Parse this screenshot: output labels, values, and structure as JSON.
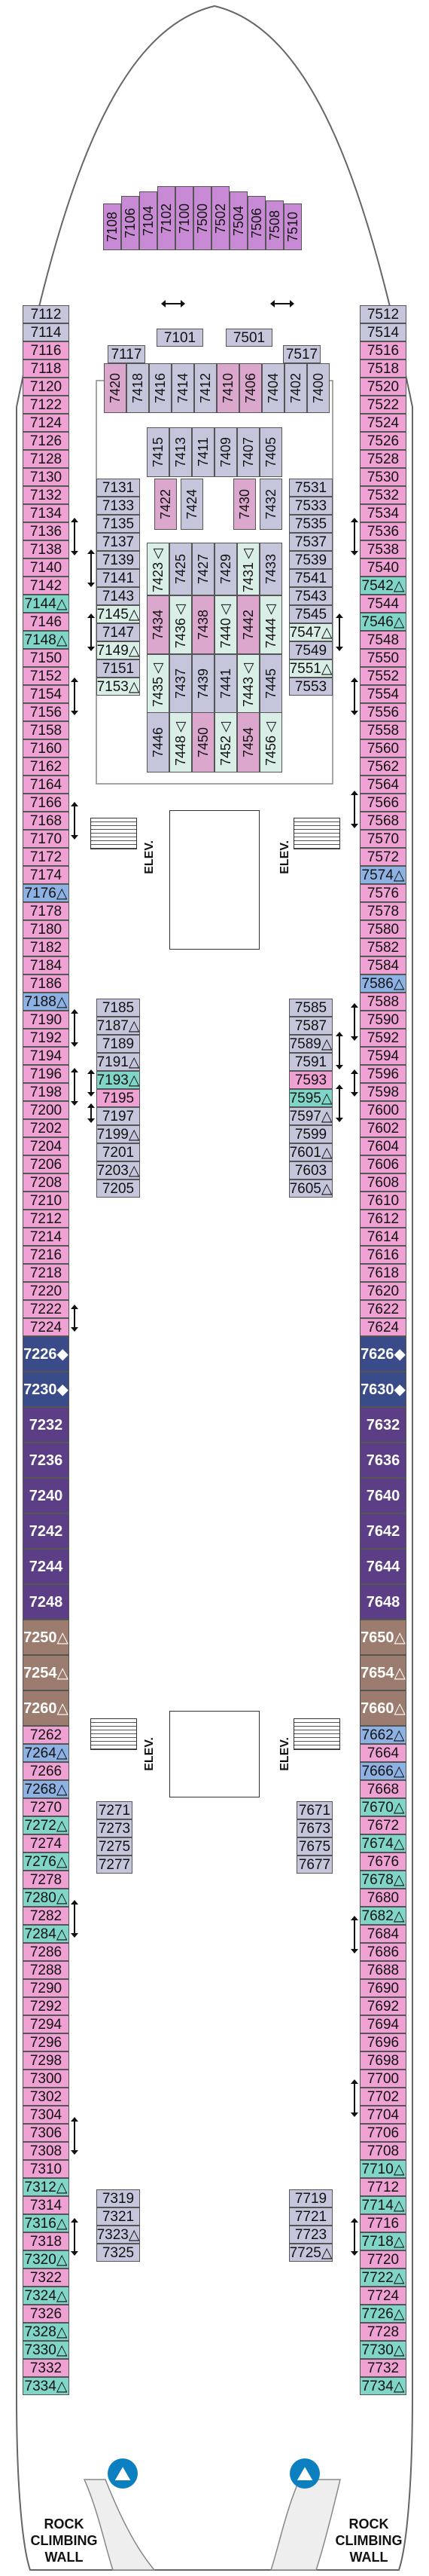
{
  "labels": {
    "elev": "ELEV.",
    "rock_climbing": "ROCK CLIMBING WALL"
  },
  "icons": [
    "rock-climbing-icon",
    "accessible-triangle-icon",
    "diamond-icon",
    "connecting-arrow-icon",
    "elevator-icon",
    "stairs-icon"
  ],
  "colors": {
    "interior": "#c5c6dc",
    "pink": "#dca7cc",
    "balcony": "#f0a1d3",
    "teal": "#7fd6c8",
    "blue": "#8eb1e4",
    "purple_suite": "#5b3e86",
    "navy": "#3a4b8a",
    "brown": "#9c7c6e",
    "plum": "#c88ad4"
  },
  "top_cabins": {
    "rotated": [
      {
        "t": "7108",
        "c": "plum"
      },
      {
        "t": "7106",
        "c": "plum"
      },
      {
        "t": "7104",
        "c": "plum"
      },
      {
        "t": "7102",
        "c": "plum"
      },
      {
        "t": "7100",
        "c": "plum"
      },
      {
        "t": "7500",
        "c": "plum"
      },
      {
        "t": "7502",
        "c": "plum"
      },
      {
        "t": "7504",
        "c": "plum"
      },
      {
        "t": "7506",
        "c": "plum"
      },
      {
        "t": "7508",
        "c": "plum"
      },
      {
        "t": "7510",
        "c": "plum"
      }
    ],
    "mid": [
      "7101",
      "7501",
      "7117",
      "7517"
    ],
    "vertical_row": [
      {
        "t": "7420",
        "c": "pink"
      },
      {
        "t": "7418",
        "c": "int"
      },
      {
        "t": "7416",
        "c": "int"
      },
      {
        "t": "7414",
        "c": "int"
      },
      {
        "t": "7412",
        "c": "int"
      },
      {
        "t": "7410",
        "c": "pink"
      },
      {
        "t": "7406",
        "c": "pink"
      },
      {
        "t": "7404",
        "c": "int"
      },
      {
        "t": "7402",
        "c": "int"
      },
      {
        "t": "7400",
        "c": "int"
      }
    ]
  },
  "left_outer": [
    {
      "t": "7112",
      "c": "int"
    },
    {
      "t": "7114",
      "c": "int"
    },
    {
      "t": "7116",
      "c": "bal"
    },
    {
      "t": "7118",
      "c": "bal"
    },
    {
      "t": "7120",
      "c": "bal"
    },
    {
      "t": "7122",
      "c": "bal"
    },
    {
      "t": "7124",
      "c": "bal"
    },
    {
      "t": "7126",
      "c": "bal"
    },
    {
      "t": "7128",
      "c": "bal"
    },
    {
      "t": "7130",
      "c": "bal"
    },
    {
      "t": "7132",
      "c": "bal"
    },
    {
      "t": "7134",
      "c": "bal"
    },
    {
      "t": "7136",
      "c": "bal"
    },
    {
      "t": "7138",
      "c": "bal"
    },
    {
      "t": "7140",
      "c": "bal"
    },
    {
      "t": "7142",
      "c": "bal"
    },
    {
      "t": "7144△",
      "c": "teal"
    },
    {
      "t": "7146",
      "c": "bal"
    },
    {
      "t": "7148△",
      "c": "teal"
    },
    {
      "t": "7150",
      "c": "bal"
    },
    {
      "t": "7152",
      "c": "bal"
    },
    {
      "t": "7154",
      "c": "bal"
    },
    {
      "t": "7156",
      "c": "bal"
    },
    {
      "t": "7158",
      "c": "bal"
    },
    {
      "t": "7160",
      "c": "bal"
    },
    {
      "t": "7162",
      "c": "bal"
    },
    {
      "t": "7164",
      "c": "bal"
    },
    {
      "t": "7166",
      "c": "bal"
    },
    {
      "t": "7168",
      "c": "bal"
    },
    {
      "t": "7170",
      "c": "bal"
    },
    {
      "t": "7172",
      "c": "bal"
    },
    {
      "t": "7174",
      "c": "bal"
    },
    {
      "t": "7176△",
      "c": "blue"
    },
    {
      "t": "7178",
      "c": "bal"
    },
    {
      "t": "7180",
      "c": "bal"
    },
    {
      "t": "7182",
      "c": "bal"
    },
    {
      "t": "7184",
      "c": "bal"
    },
    {
      "t": "7186",
      "c": "bal"
    },
    {
      "t": "7188△",
      "c": "blue"
    },
    {
      "t": "7190",
      "c": "bal"
    },
    {
      "t": "7192",
      "c": "bal"
    },
    {
      "t": "7194",
      "c": "bal"
    },
    {
      "t": "7196",
      "c": "bal"
    },
    {
      "t": "7198",
      "c": "bal"
    },
    {
      "t": "7200",
      "c": "bal"
    },
    {
      "t": "7202",
      "c": "bal"
    },
    {
      "t": "7204",
      "c": "bal"
    },
    {
      "t": "7206",
      "c": "bal"
    },
    {
      "t": "7208",
      "c": "bal"
    },
    {
      "t": "7210",
      "c": "bal"
    },
    {
      "t": "7212",
      "c": "bal"
    },
    {
      "t": "7214",
      "c": "bal"
    },
    {
      "t": "7216",
      "c": "bal"
    },
    {
      "t": "7218",
      "c": "bal"
    },
    {
      "t": "7220",
      "c": "bal"
    },
    {
      "t": "7222",
      "c": "bal"
    },
    {
      "t": "7224",
      "c": "bal"
    },
    {
      "t": "7226◆",
      "c": "nav"
    },
    {
      "t": "7230◆",
      "c": "nav"
    },
    {
      "t": "7232",
      "c": "purp"
    },
    {
      "t": "7236",
      "c": "purp"
    },
    {
      "t": "7240",
      "c": "purp"
    },
    {
      "t": "7242",
      "c": "purp"
    },
    {
      "t": "7244",
      "c": "purp"
    },
    {
      "t": "7248",
      "c": "purp"
    },
    {
      "t": "7250△",
      "c": "brown"
    },
    {
      "t": "7254△",
      "c": "brown"
    },
    {
      "t": "7260△",
      "c": "brown"
    },
    {
      "t": "7262",
      "c": "bal"
    },
    {
      "t": "7264△",
      "c": "blue"
    },
    {
      "t": "7266",
      "c": "bal"
    },
    {
      "t": "7268△",
      "c": "blue"
    },
    {
      "t": "7270",
      "c": "bal"
    },
    {
      "t": "7272△",
      "c": "teal"
    },
    {
      "t": "7274",
      "c": "bal"
    },
    {
      "t": "7276△",
      "c": "teal"
    },
    {
      "t": "7278",
      "c": "bal"
    },
    {
      "t": "7280△",
      "c": "teal"
    },
    {
      "t": "7282",
      "c": "bal"
    },
    {
      "t": "7284△",
      "c": "teal"
    },
    {
      "t": "7286",
      "c": "bal"
    },
    {
      "t": "7288",
      "c": "bal"
    },
    {
      "t": "7290",
      "c": "bal"
    },
    {
      "t": "7292",
      "c": "bal"
    },
    {
      "t": "7294",
      "c": "bal"
    },
    {
      "t": "7296",
      "c": "bal"
    },
    {
      "t": "7298",
      "c": "bal"
    },
    {
      "t": "7300",
      "c": "bal"
    },
    {
      "t": "7302",
      "c": "bal"
    },
    {
      "t": "7304",
      "c": "bal"
    },
    {
      "t": "7306",
      "c": "bal"
    },
    {
      "t": "7308",
      "c": "bal"
    },
    {
      "t": "7310",
      "c": "bal"
    },
    {
      "t": "7312△",
      "c": "teal"
    },
    {
      "t": "7314",
      "c": "bal"
    },
    {
      "t": "7316△",
      "c": "teal"
    },
    {
      "t": "7318",
      "c": "bal"
    },
    {
      "t": "7320△",
      "c": "teal"
    },
    {
      "t": "7322",
      "c": "bal"
    },
    {
      "t": "7324△",
      "c": "teal"
    },
    {
      "t": "7326",
      "c": "bal"
    },
    {
      "t": "7328△",
      "c": "teal"
    },
    {
      "t": "7330△",
      "c": "teal"
    },
    {
      "t": "7332",
      "c": "bal"
    },
    {
      "t": "7334△",
      "c": "teal"
    }
  ],
  "right_outer": [
    {
      "t": "7512",
      "c": "int"
    },
    {
      "t": "7514",
      "c": "int"
    },
    {
      "t": "7516",
      "c": "bal"
    },
    {
      "t": "7518",
      "c": "bal"
    },
    {
      "t": "7520",
      "c": "bal"
    },
    {
      "t": "7522",
      "c": "bal"
    },
    {
      "t": "7524",
      "c": "bal"
    },
    {
      "t": "7526",
      "c": "bal"
    },
    {
      "t": "7528",
      "c": "bal"
    },
    {
      "t": "7530",
      "c": "bal"
    },
    {
      "t": "7532",
      "c": "bal"
    },
    {
      "t": "7534",
      "c": "bal"
    },
    {
      "t": "7536",
      "c": "bal"
    },
    {
      "t": "7538",
      "c": "bal"
    },
    {
      "t": "7540",
      "c": "bal"
    },
    {
      "t": "7542△",
      "c": "teal"
    },
    {
      "t": "7544",
      "c": "bal"
    },
    {
      "t": "7546△",
      "c": "teal"
    },
    {
      "t": "7548",
      "c": "bal"
    },
    {
      "t": "7550",
      "c": "bal"
    },
    {
      "t": "7552",
      "c": "bal"
    },
    {
      "t": "7554",
      "c": "bal"
    },
    {
      "t": "7556",
      "c": "bal"
    },
    {
      "t": "7558",
      "c": "bal"
    },
    {
      "t": "7560",
      "c": "bal"
    },
    {
      "t": "7562",
      "c": "bal"
    },
    {
      "t": "7564",
      "c": "bal"
    },
    {
      "t": "7566",
      "c": "bal"
    },
    {
      "t": "7568",
      "c": "bal"
    },
    {
      "t": "7570",
      "c": "bal"
    },
    {
      "t": "7572",
      "c": "bal"
    },
    {
      "t": "7574△",
      "c": "blue"
    },
    {
      "t": "7576",
      "c": "bal"
    },
    {
      "t": "7578",
      "c": "bal"
    },
    {
      "t": "7580",
      "c": "bal"
    },
    {
      "t": "7582",
      "c": "bal"
    },
    {
      "t": "7584",
      "c": "bal"
    },
    {
      "t": "7586△",
      "c": "blue"
    },
    {
      "t": "7588",
      "c": "bal"
    },
    {
      "t": "7590",
      "c": "bal"
    },
    {
      "t": "7592",
      "c": "bal"
    },
    {
      "t": "7594",
      "c": "bal"
    },
    {
      "t": "7596",
      "c": "bal"
    },
    {
      "t": "7598",
      "c": "bal"
    },
    {
      "t": "7600",
      "c": "bal"
    },
    {
      "t": "7602",
      "c": "bal"
    },
    {
      "t": "7604",
      "c": "bal"
    },
    {
      "t": "7606",
      "c": "bal"
    },
    {
      "t": "7608",
      "c": "bal"
    },
    {
      "t": "7610",
      "c": "bal"
    },
    {
      "t": "7612",
      "c": "bal"
    },
    {
      "t": "7614",
      "c": "bal"
    },
    {
      "t": "7616",
      "c": "bal"
    },
    {
      "t": "7618",
      "c": "bal"
    },
    {
      "t": "7620",
      "c": "bal"
    },
    {
      "t": "7622",
      "c": "bal"
    },
    {
      "t": "7624",
      "c": "bal"
    },
    {
      "t": "7626◆",
      "c": "nav"
    },
    {
      "t": "7630◆",
      "c": "nav"
    },
    {
      "t": "7632",
      "c": "purp"
    },
    {
      "t": "7636",
      "c": "purp"
    },
    {
      "t": "7640",
      "c": "purp"
    },
    {
      "t": "7642",
      "c": "purp"
    },
    {
      "t": "7644",
      "c": "purp"
    },
    {
      "t": "7648",
      "c": "purp"
    },
    {
      "t": "7650△",
      "c": "brown"
    },
    {
      "t": "7654△",
      "c": "brown"
    },
    {
      "t": "7660△",
      "c": "brown"
    },
    {
      "t": "7662△",
      "c": "blue"
    },
    {
      "t": "7664",
      "c": "bal"
    },
    {
      "t": "7666△",
      "c": "blue"
    },
    {
      "t": "7668",
      "c": "bal"
    },
    {
      "t": "7670△",
      "c": "teal"
    },
    {
      "t": "7672",
      "c": "bal"
    },
    {
      "t": "7674△",
      "c": "teal"
    },
    {
      "t": "7676",
      "c": "bal"
    },
    {
      "t": "7678△",
      "c": "teal"
    },
    {
      "t": "7680",
      "c": "bal"
    },
    {
      "t": "7682△",
      "c": "teal"
    },
    {
      "t": "7684",
      "c": "bal"
    },
    {
      "t": "7686",
      "c": "bal"
    },
    {
      "t": "7688",
      "c": "bal"
    },
    {
      "t": "7690",
      "c": "bal"
    },
    {
      "t": "7692",
      "c": "bal"
    },
    {
      "t": "7694",
      "c": "bal"
    },
    {
      "t": "7696",
      "c": "bal"
    },
    {
      "t": "7698",
      "c": "bal"
    },
    {
      "t": "7700",
      "c": "bal"
    },
    {
      "t": "7702",
      "c": "bal"
    },
    {
      "t": "7704",
      "c": "bal"
    },
    {
      "t": "7706",
      "c": "bal"
    },
    {
      "t": "7708",
      "c": "bal"
    },
    {
      "t": "7710△",
      "c": "teal"
    },
    {
      "t": "7712",
      "c": "bal"
    },
    {
      "t": "7714△",
      "c": "teal"
    },
    {
      "t": "7716",
      "c": "bal"
    },
    {
      "t": "7718△",
      "c": "teal"
    },
    {
      "t": "7720",
      "c": "bal"
    },
    {
      "t": "7722△",
      "c": "teal"
    },
    {
      "t": "7724",
      "c": "bal"
    },
    {
      "t": "7726△",
      "c": "teal"
    },
    {
      "t": "7728",
      "c": "bal"
    },
    {
      "t": "7730△",
      "c": "teal"
    },
    {
      "t": "7732",
      "c": "bal"
    },
    {
      "t": "7734△",
      "c": "teal"
    }
  ],
  "left_inner_top": [
    {
      "t": "7131",
      "c": "int"
    },
    {
      "t": "7133",
      "c": "int"
    },
    {
      "t": "7135",
      "c": "int"
    },
    {
      "t": "7137",
      "c": "int"
    },
    {
      "t": "7139",
      "c": "int"
    },
    {
      "t": "7141",
      "c": "int"
    },
    {
      "t": "7143",
      "c": "int"
    },
    {
      "t": "7145△",
      "c": "mint"
    },
    {
      "t": "7147",
      "c": "int"
    },
    {
      "t": "7149△",
      "c": "mint"
    },
    {
      "t": "7151",
      "c": "int"
    },
    {
      "t": "7153△",
      "c": "mint"
    }
  ],
  "right_inner_top": [
    {
      "t": "7531",
      "c": "int"
    },
    {
      "t": "7533",
      "c": "int"
    },
    {
      "t": "7535",
      "c": "int"
    },
    {
      "t": "7537",
      "c": "int"
    },
    {
      "t": "7539",
      "c": "int"
    },
    {
      "t": "7541",
      "c": "int"
    },
    {
      "t": "7543",
      "c": "int"
    },
    {
      "t": "7545",
      "c": "int"
    },
    {
      "t": "7547△",
      "c": "mint"
    },
    {
      "t": "7549",
      "c": "int"
    },
    {
      "t": "7551△",
      "c": "mint"
    },
    {
      "t": "7553",
      "c": "int"
    }
  ],
  "center_rows": [
    [
      {
        "t": "7415",
        "c": "int"
      },
      {
        "t": "7413",
        "c": "int"
      },
      {
        "t": "7411",
        "c": "int"
      },
      {
        "t": "7409",
        "c": "int"
      },
      {
        "t": "7407",
        "c": "int"
      },
      {
        "t": "7405",
        "c": "int"
      }
    ],
    [
      {
        "t": "7422",
        "c": "pink"
      },
      {
        "t": "7424",
        "c": "int"
      },
      {
        "t": "7430",
        "c": "pink"
      },
      {
        "t": "7432",
        "c": "int"
      }
    ],
    [
      {
        "t": "7423△",
        "c": "mint"
      },
      {
        "t": "7425",
        "c": "int"
      },
      {
        "t": "7427",
        "c": "int"
      },
      {
        "t": "7429",
        "c": "int"
      },
      {
        "t": "7431△",
        "c": "mint"
      },
      {
        "t": "7433",
        "c": "int"
      }
    ],
    [
      {
        "t": "7434",
        "c": "pink"
      },
      {
        "t": "7436△",
        "c": "mint"
      },
      {
        "t": "7438",
        "c": "pink"
      },
      {
        "t": "7440△",
        "c": "mint"
      },
      {
        "t": "7442",
        "c": "pink"
      },
      {
        "t": "7444△",
        "c": "mint"
      }
    ],
    [
      {
        "t": "7435△",
        "c": "mint"
      },
      {
        "t": "7437",
        "c": "int"
      },
      {
        "t": "7439",
        "c": "int"
      },
      {
        "t": "7441",
        "c": "int"
      },
      {
        "t": "7443△",
        "c": "mint"
      },
      {
        "t": "7445",
        "c": "int"
      }
    ],
    [
      {
        "t": "7446",
        "c": "int"
      },
      {
        "t": "7448△",
        "c": "mint"
      },
      {
        "t": "7450",
        "c": "pink"
      },
      {
        "t": "7452△",
        "c": "mint"
      },
      {
        "t": "7454",
        "c": "pink"
      },
      {
        "t": "7456△",
        "c": "mint"
      }
    ]
  ],
  "left_inner_mid": [
    {
      "t": "7185",
      "c": "int"
    },
    {
      "t": "7187△",
      "c": "int"
    },
    {
      "t": "7189",
      "c": "int"
    },
    {
      "t": "7191△",
      "c": "int"
    },
    {
      "t": "7193△",
      "c": "teal"
    },
    {
      "t": "7195",
      "c": "bal"
    },
    {
      "t": "7197",
      "c": "int"
    },
    {
      "t": "7199△",
      "c": "int"
    },
    {
      "t": "7201",
      "c": "int"
    },
    {
      "t": "7203△",
      "c": "int"
    },
    {
      "t": "7205",
      "c": "int"
    }
  ],
  "right_inner_mid": [
    {
      "t": "7585",
      "c": "int"
    },
    {
      "t": "7587",
      "c": "int"
    },
    {
      "t": "7589△",
      "c": "int"
    },
    {
      "t": "7591",
      "c": "int"
    },
    {
      "t": "7593",
      "c": "bal"
    },
    {
      "t": "7595△",
      "c": "teal"
    },
    {
      "t": "7597△",
      "c": "int"
    },
    {
      "t": "7599",
      "c": "int"
    },
    {
      "t": "7601△",
      "c": "int"
    },
    {
      "t": "7603",
      "c": "int"
    },
    {
      "t": "7605△",
      "c": "int"
    }
  ],
  "left_inner_low": [
    {
      "t": "7271",
      "c": "int"
    },
    {
      "t": "7273",
      "c": "int"
    },
    {
      "t": "7275",
      "c": "int"
    },
    {
      "t": "7277",
      "c": "int"
    }
  ],
  "right_inner_low": [
    {
      "t": "7671",
      "c": "int"
    },
    {
      "t": "7673",
      "c": "int"
    },
    {
      "t": "7675",
      "c": "int"
    },
    {
      "t": "7677",
      "c": "int"
    }
  ],
  "left_inner_bottom": [
    {
      "t": "7319",
      "c": "int"
    },
    {
      "t": "7321",
      "c": "int"
    },
    {
      "t": "7323△",
      "c": "int"
    },
    {
      "t": "7325",
      "c": "int"
    }
  ],
  "right_inner_bottom": [
    {
      "t": "7719",
      "c": "int"
    },
    {
      "t": "7721",
      "c": "int"
    },
    {
      "t": "7723",
      "c": "int"
    },
    {
      "t": "7725△",
      "c": "int"
    }
  ]
}
